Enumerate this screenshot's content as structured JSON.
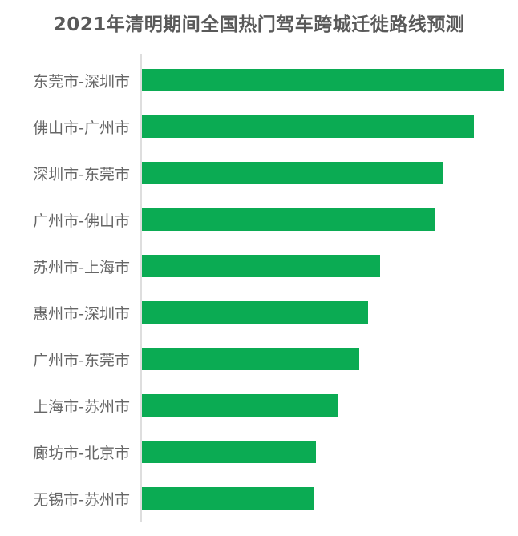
{
  "title": "2021年清明期间全国热门驾车跨城迁徙路线预测",
  "chart_data": {
    "type": "bar",
    "orientation": "horizontal",
    "title": "2021年清明期间全国热门驾车跨城迁徙路线预测",
    "categories": [
      "东莞市-深圳市",
      "佛山市-广州市",
      "深圳市-东莞市",
      "广州市-佛山市",
      "苏州市-上海市",
      "惠州市-深圳市",
      "广州市-东莞市",
      "上海市-苏州市",
      "廊坊市-北京市",
      "无锡市-苏州市"
    ],
    "values": [
      100,
      91.6,
      83.2,
      81.0,
      65.7,
      62.4,
      60.0,
      54.0,
      48.0,
      47.6
    ],
    "value_axis_visible": false,
    "xlim": [
      0,
      100
    ],
    "xlabel": "",
    "ylabel": "",
    "grid": false,
    "legend": false,
    "data_labels": false
  },
  "colors": {
    "bar": "#0bab53",
    "title_text": "#595959",
    "label_text": "#666666",
    "axis_line": "#dedede",
    "background": "#ffffff"
  }
}
